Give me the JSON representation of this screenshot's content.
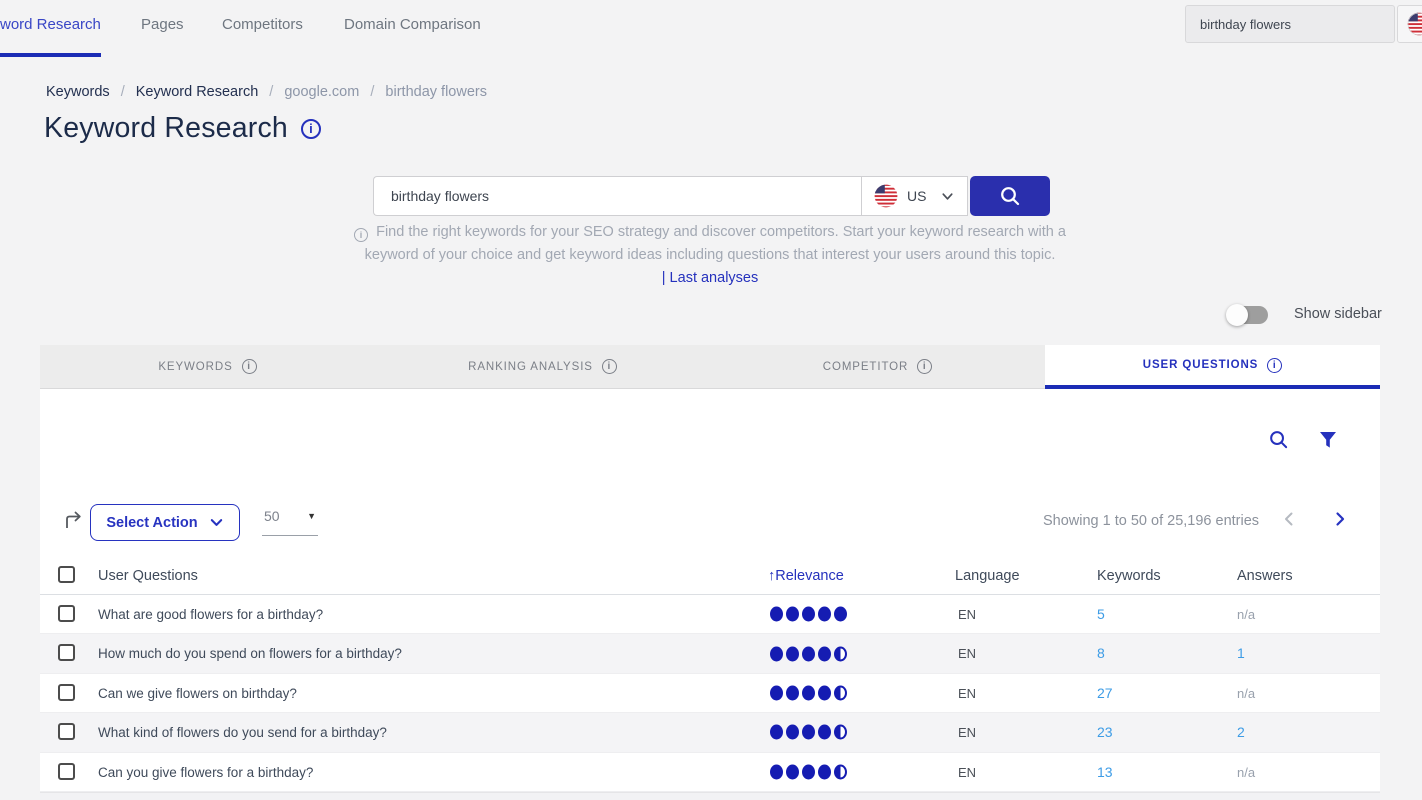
{
  "topnav": {
    "items": [
      {
        "label": "word Research"
      },
      {
        "label": "Pages"
      },
      {
        "label": "Competitors"
      },
      {
        "label": "Domain Comparison"
      }
    ],
    "search_value": "birthday flowers"
  },
  "breadcrumb": {
    "sep": "/",
    "items": [
      {
        "label": "Keywords"
      },
      {
        "label": "Keyword Research"
      },
      {
        "label": "google.com"
      },
      {
        "label": "birthday flowers"
      }
    ]
  },
  "header": {
    "title": "Keyword Research"
  },
  "search_form": {
    "input_value": "birthday flowers",
    "country_code": "US",
    "hint_line1": "Find the right keywords for your SEO strategy and discover competitors. Start your keyword research with a",
    "hint_line2": "keyword of your choice and get keyword ideas including questions that interest your users around this topic.",
    "last_analyses": "| Last analyses"
  },
  "sidebar_toggle": {
    "label": "Show sidebar",
    "state": "off"
  },
  "tabs": {
    "items": [
      {
        "label": "KEYWORDS",
        "active": false
      },
      {
        "label": "RANKING ANALYSIS",
        "active": false
      },
      {
        "label": "COMPETITOR",
        "active": false
      },
      {
        "label": "USER QUESTIONS",
        "active": true
      }
    ]
  },
  "toolbar": {
    "select_action": "Select Action",
    "page_size": "50",
    "showing": "Showing 1 to 50 of 25,196 entries"
  },
  "table": {
    "headers": {
      "questions": "User Questions",
      "sort_arrow": "↑",
      "relevance": "Relevance",
      "language": "Language",
      "keywords": "Keywords",
      "answers": "Answers"
    },
    "sort": {
      "column": "Relevance",
      "direction": "asc"
    },
    "rows": [
      {
        "question": "What are good flowers for a birthday?",
        "relevance": 5,
        "language": "EN",
        "keywords": "5",
        "answers": "n/a",
        "answers_is_link": false
      },
      {
        "question": "How much do you spend on flowers for a birthday?",
        "relevance": 4.5,
        "language": "EN",
        "keywords": "8",
        "answers": "1",
        "answers_is_link": true
      },
      {
        "question": "Can we give flowers on birthday?",
        "relevance": 4.5,
        "language": "EN",
        "keywords": "27",
        "answers": "n/a",
        "answers_is_link": false
      },
      {
        "question": "What kind of flowers do you send for a birthday?",
        "relevance": 4.5,
        "language": "EN",
        "keywords": "23",
        "answers": "2",
        "answers_is_link": true
      },
      {
        "question": "Can you give flowers for a birthday?",
        "relevance": 4.5,
        "language": "EN",
        "keywords": "13",
        "answers": "n/a",
        "answers_is_link": false
      }
    ]
  },
  "colors": {
    "accent_blue": "#2531bd",
    "nav_active_blue": "#3946c6",
    "underline_blue": "#1b2cb5",
    "button_blue": "#2a2fad",
    "dot_blue": "#151cb2",
    "link_light_blue": "#3d9ce6",
    "muted_text": "#99a1ad",
    "page_background": "#f3f3f4",
    "tab_inactive_background": "#ececec"
  }
}
